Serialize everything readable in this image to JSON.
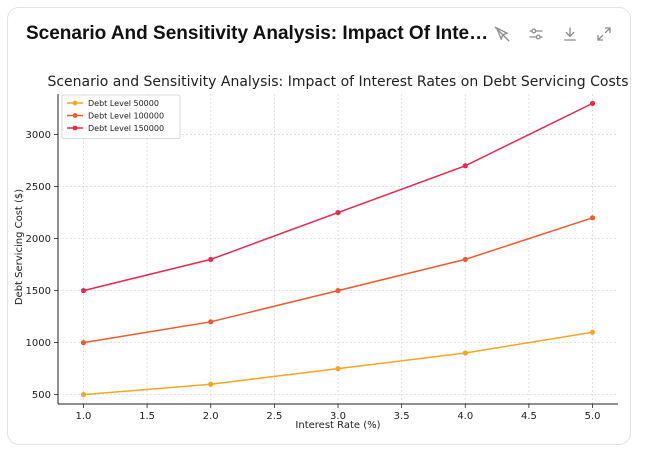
{
  "header": {
    "title": "Scenario And Sensitivity Analysis: Impact Of Interest ..."
  },
  "toolbar": {
    "icons": [
      "pointer-off-icon",
      "sliders-icon",
      "download-icon",
      "expand-icon"
    ],
    "icon_color": "#8e8e93"
  },
  "chart_data": {
    "type": "line",
    "title": "Scenario and Sensitivity Analysis: Impact of Interest Rates on Debt Servicing Costs",
    "xlabel": "Interest Rate (%)",
    "ylabel": "Debt Servicing Cost ($)",
    "x": [
      1.0,
      2.0,
      3.0,
      4.0,
      5.0
    ],
    "xticks": [
      "1.0",
      "1.5",
      "2.0",
      "2.5",
      "3.0",
      "3.5",
      "4.0",
      "4.5",
      "5.0"
    ],
    "yticks": [
      "500",
      "1000",
      "1500",
      "2000",
      "2500",
      "3000"
    ],
    "xlim": [
      0.8,
      5.2
    ],
    "ylim": [
      410,
      3390
    ],
    "grid": true,
    "legend_position": "top-left",
    "series": [
      {
        "name": "Debt Level 50000",
        "color": "#f5a623",
        "values": [
          500,
          600,
          750,
          900,
          1100
        ]
      },
      {
        "name": "Debt Level 100000",
        "color": "#ef5a2f",
        "values": [
          1000,
          1200,
          1500,
          1800,
          2200
        ]
      },
      {
        "name": "Debt Level 150000",
        "color": "#e8284f",
        "values": [
          1500,
          1800,
          2250,
          2700,
          3300
        ]
      }
    ]
  }
}
